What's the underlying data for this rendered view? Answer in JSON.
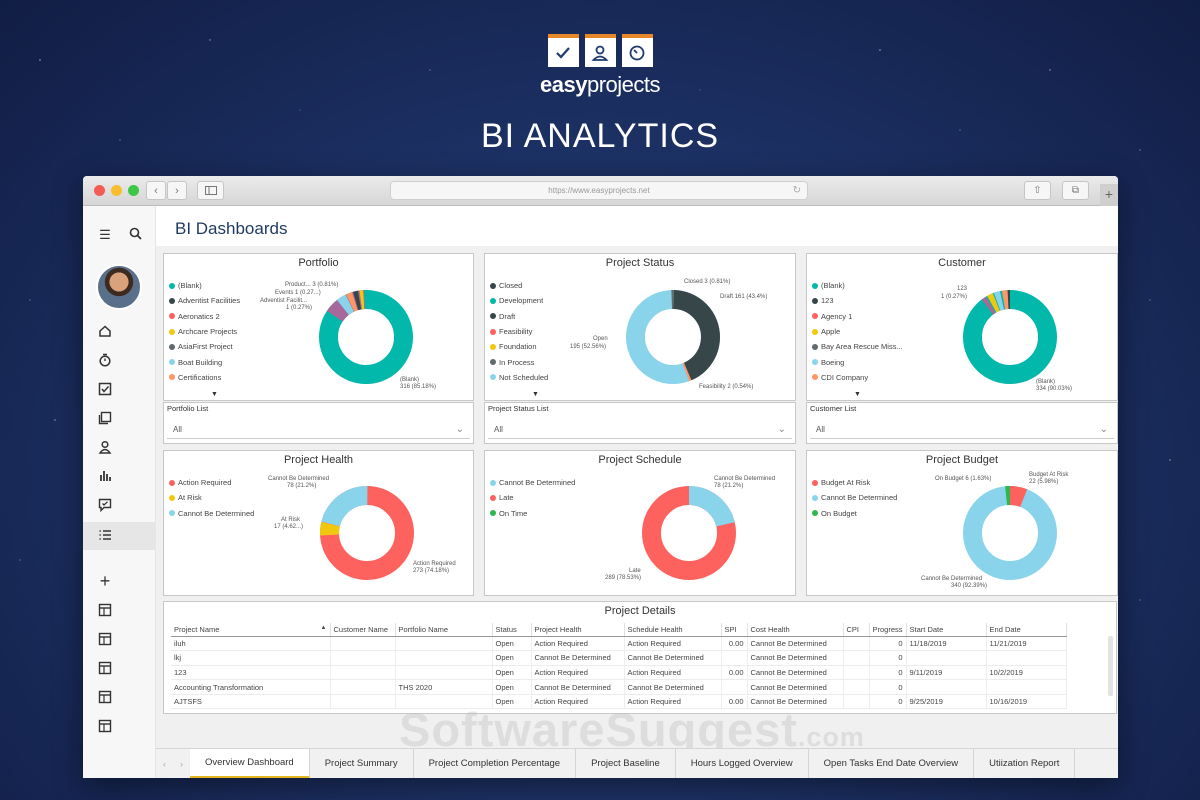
{
  "brand": {
    "logo_text_bold": "easy",
    "logo_text": "projects",
    "hero_title": "BI ANALYTICS"
  },
  "browser": {
    "url": "https://www.easyprojects.net"
  },
  "header": {
    "title": "BI Dashboards"
  },
  "colors": {
    "teal": "#01b8aa",
    "dark": "#374649",
    "red": "#fd625e",
    "yellow": "#f2c80f",
    "light_blue": "#8ad4eb",
    "orange": "#fe9666",
    "purple": "#a66999",
    "green": "#2db84d",
    "brand_orange": "#e8862a",
    "navy": "#1e3a5f"
  },
  "charts": {
    "portfolio": {
      "title": "Portfolio",
      "legend": [
        "(Blank)",
        "Adventist Facilities",
        "Aeronatics 2",
        "Archcare Projects",
        "AsiaFirst Project",
        "Boat Building",
        "Certifications"
      ],
      "labels": [
        "Product... 3 (0.81%)",
        "Events 1 (0.27...)",
        "Adventist Facilit...",
        "1 (0.27%)",
        "(Blank)",
        "316 (85.18%)"
      ]
    },
    "project_status": {
      "title": "Project Status",
      "legend": [
        "Closed",
        "Development",
        "Draft",
        "Feasibility",
        "Foundation",
        "In Process",
        "Not Scheduled"
      ],
      "labels": [
        "Closed 3 (0.81%)",
        "Draft 161 (43.4%)",
        "Open",
        "195 (52.56%)",
        "Feasibility 2 (0.54%)"
      ]
    },
    "customer": {
      "title": "Customer",
      "legend": [
        "(Blank)",
        "123",
        "Agency 1",
        "Apple",
        "Bay Area Rescue Miss...",
        "Boeing",
        "CDI Company"
      ],
      "labels": [
        "123",
        "1 (0.27%)",
        "(Blank)",
        "334 (90.03%)"
      ]
    },
    "project_health": {
      "title": "Project Health",
      "legend": [
        "Action Required",
        "At Risk",
        "Cannot Be Determined"
      ],
      "labels": [
        "Cannot Be Determined",
        "78 (21.2%)",
        "At Risk",
        "17 (4.62...)",
        "Action Required",
        "273 (74.18%)"
      ]
    },
    "project_schedule": {
      "title": "Project Schedule",
      "legend": [
        "Cannot Be Determined",
        "Late",
        "On Time"
      ],
      "labels": [
        "Cannot Be Determined",
        "78 (21.2%)",
        "Late",
        "289 (78.53%)"
      ]
    },
    "project_budget": {
      "title": "Project Budget",
      "legend": [
        "Budget At Risk",
        "Cannot Be Determined",
        "On Budget"
      ],
      "labels": [
        "On Budget 6 (1.63%)",
        "Budget At Risk",
        "22 (5.98%)",
        "Cannot Be Determined",
        "340 (92.39%)"
      ]
    }
  },
  "filters": [
    {
      "label": "Portfolio List",
      "value": "All"
    },
    {
      "label": "Project Status List",
      "value": "All"
    },
    {
      "label": "Customer List",
      "value": "All"
    }
  ],
  "details": {
    "title": "Project Details",
    "columns": [
      "Project Name",
      "Customer Name",
      "Portfolio Name",
      "Status",
      "Project Health",
      "Schedule Health",
      "SPI",
      "Cost Health",
      "CPI",
      "Progress",
      "Start Date",
      "End Date"
    ],
    "rows": [
      [
        "iluh",
        "",
        "",
        "Open",
        "Action Required",
        "Action Required",
        "0.00",
        "Cannot Be Determined",
        "",
        "0",
        "11/18/2019",
        "11/21/2019"
      ],
      [
        "lkj",
        "",
        "",
        "Open",
        "Cannot Be Determined",
        "Cannot Be Determined",
        "",
        "Cannot Be Determined",
        "",
        "0",
        "",
        ""
      ],
      [
        "123",
        "",
        "",
        "Open",
        "Action Required",
        "Action Required",
        "0.00",
        "Cannot Be Determined",
        "",
        "0",
        "9/11/2019",
        "10/2/2019"
      ],
      [
        "Accounting Transformation",
        "",
        "THS 2020",
        "Open",
        "Cannot Be Determined",
        "Cannot Be Determined",
        "",
        "Cannot Be Determined",
        "",
        "0",
        "",
        ""
      ],
      [
        "AJTSFS",
        "",
        "",
        "Open",
        "Action Required",
        "Action Required",
        "0.00",
        "Cannot Be Determined",
        "",
        "0",
        "9/25/2019",
        "10/16/2019"
      ]
    ]
  },
  "watermark": {
    "main": "SoftwareSuggest",
    "suffix": ".com"
  },
  "tabs": [
    "Overview Dashboard",
    "Project Summary",
    "Project Completion Percentage",
    "Project Baseline",
    "Hours Logged Overview",
    "Open Tasks End Date Overview",
    "Utiization Report"
  ]
}
